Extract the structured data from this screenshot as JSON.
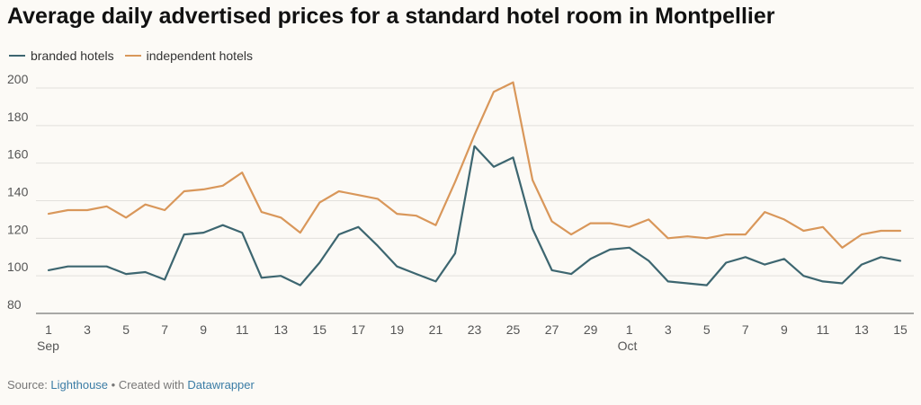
{
  "title": "Average daily advertised prices for a standard hotel room in Montpellier",
  "legend": [
    {
      "label": "branded hotels",
      "color": "#3d6670"
    },
    {
      "label": "independent hotels",
      "color": "#d9975a"
    }
  ],
  "footer": {
    "source_label": "Source: ",
    "source_link": "Lighthouse",
    "separator": " • Created with ",
    "tool_link": "Datawrapper"
  },
  "chart_data": {
    "type": "line",
    "ylim": [
      80,
      200
    ],
    "yticks": [
      80,
      100,
      120,
      140,
      160,
      180,
      200
    ],
    "x_tick_labels": [
      {
        "index": 0,
        "label": "1",
        "sub": "Sep"
      },
      {
        "index": 2,
        "label": "3"
      },
      {
        "index": 4,
        "label": "5"
      },
      {
        "index": 6,
        "label": "7"
      },
      {
        "index": 8,
        "label": "9"
      },
      {
        "index": 10,
        "label": "11"
      },
      {
        "index": 12,
        "label": "13"
      },
      {
        "index": 14,
        "label": "15"
      },
      {
        "index": 16,
        "label": "17"
      },
      {
        "index": 18,
        "label": "19"
      },
      {
        "index": 20,
        "label": "21"
      },
      {
        "index": 22,
        "label": "23"
      },
      {
        "index": 24,
        "label": "25"
      },
      {
        "index": 26,
        "label": "27"
      },
      {
        "index": 28,
        "label": "29"
      },
      {
        "index": 30,
        "label": "1",
        "sub": "Oct"
      },
      {
        "index": 32,
        "label": "3"
      },
      {
        "index": 34,
        "label": "5"
      },
      {
        "index": 36,
        "label": "7"
      },
      {
        "index": 38,
        "label": "9"
      },
      {
        "index": 40,
        "label": "11"
      },
      {
        "index": 42,
        "label": "13"
      },
      {
        "index": 44,
        "label": "15"
      }
    ],
    "series": [
      {
        "name": "branded hotels",
        "color": "#3d6670",
        "values": [
          103,
          105,
          105,
          105,
          101,
          102,
          98,
          122,
          123,
          127,
          123,
          99,
          100,
          95,
          107,
          122,
          126,
          116,
          105,
          101,
          97,
          112,
          169,
          158,
          163,
          125,
          103,
          101,
          109,
          114,
          115,
          108,
          97,
          96,
          95,
          107,
          110,
          106,
          109,
          100,
          97,
          96,
          106,
          110,
          108
        ]
      },
      {
        "name": "independent hotels",
        "color": "#d9975a",
        "values": [
          133,
          135,
          135,
          137,
          131,
          138,
          135,
          145,
          146,
          148,
          155,
          134,
          131,
          123,
          139,
          145,
          143,
          141,
          133,
          132,
          127,
          150,
          175,
          198,
          203,
          151,
          129,
          122,
          128,
          128,
          126,
          130,
          120,
          121,
          120,
          122,
          122,
          134,
          130,
          124,
          126,
          115,
          122,
          124,
          124
        ]
      }
    ]
  }
}
